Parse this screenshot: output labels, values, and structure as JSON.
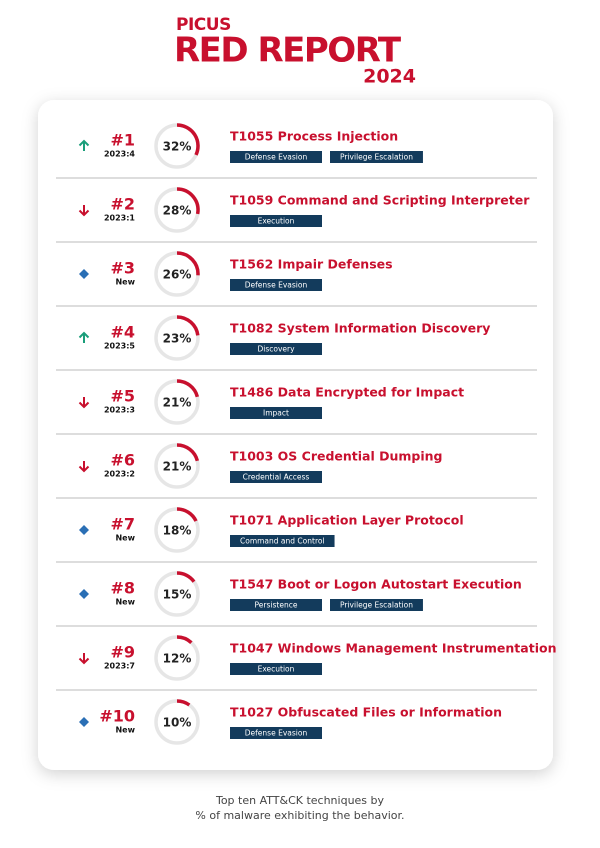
{
  "header": {
    "logo": "PICUS",
    "title": "RED REPORT",
    "year": "2024"
  },
  "rows": [
    {
      "trend": "up",
      "rank": "#1",
      "previous": "2023:4",
      "percent": {
        "value": 32,
        "label": "32%"
      },
      "technique": "T1055 Process Injection",
      "tactics": [
        "Defense Evasion",
        "Privilege Escalation"
      ]
    },
    {
      "trend": "down",
      "rank": "#2",
      "previous": "2023:1",
      "percent": {
        "value": 28,
        "label": "28%"
      },
      "technique": "T1059 Command and Scripting Interpreter",
      "tactics": [
        "Execution"
      ]
    },
    {
      "trend": "new",
      "rank": "#3",
      "previous": "New",
      "percent": {
        "value": 26,
        "label": "26%"
      },
      "technique": "T1562 Impair Defenses",
      "tactics": [
        "Defense Evasion"
      ]
    },
    {
      "trend": "up",
      "rank": "#4",
      "previous": "2023:5",
      "percent": {
        "value": 23,
        "label": "23%"
      },
      "technique": "T1082 System Information Discovery",
      "tactics": [
        "Discovery"
      ]
    },
    {
      "trend": "down",
      "rank": "#5",
      "previous": "2023:3",
      "percent": {
        "value": 21,
        "label": "21%"
      },
      "technique": "T1486 Data Encrypted for Impact",
      "tactics": [
        "Impact"
      ]
    },
    {
      "trend": "down",
      "rank": "#6",
      "previous": "2023:2",
      "percent": {
        "value": 21,
        "label": "21%"
      },
      "technique": "T1003 OS Credential Dumping",
      "tactics": [
        "Credential Access"
      ]
    },
    {
      "trend": "new",
      "rank": "#7",
      "previous": "New",
      "percent": {
        "value": 18,
        "label": "18%"
      },
      "technique": "T1071 Application Layer Protocol",
      "tactics": [
        "Command and Control"
      ]
    },
    {
      "trend": "new",
      "rank": "#8",
      "previous": "New",
      "percent": {
        "value": 15,
        "label": "15%"
      },
      "technique": "T1547 Boot or Logon Autostart Execution",
      "tactics": [
        "Persistence",
        "Privilege Escalation"
      ]
    },
    {
      "trend": "down",
      "rank": "#9",
      "previous": "2023:7",
      "percent": {
        "value": 12,
        "label": "12%"
      },
      "technique": "T1047 Windows Management Instrumentation",
      "tactics": [
        "Execution"
      ]
    },
    {
      "trend": "new",
      "rank": "#10",
      "previous": "New",
      "percent": {
        "value": 10,
        "label": "10%"
      },
      "technique": "T1027 Obfuscated Files or Information",
      "tactics": [
        "Defense Evasion"
      ]
    }
  ],
  "footer": {
    "lines": [
      "Top ten ATT&CK techniques by",
      "% of malware exhibiting the behavior."
    ]
  }
}
